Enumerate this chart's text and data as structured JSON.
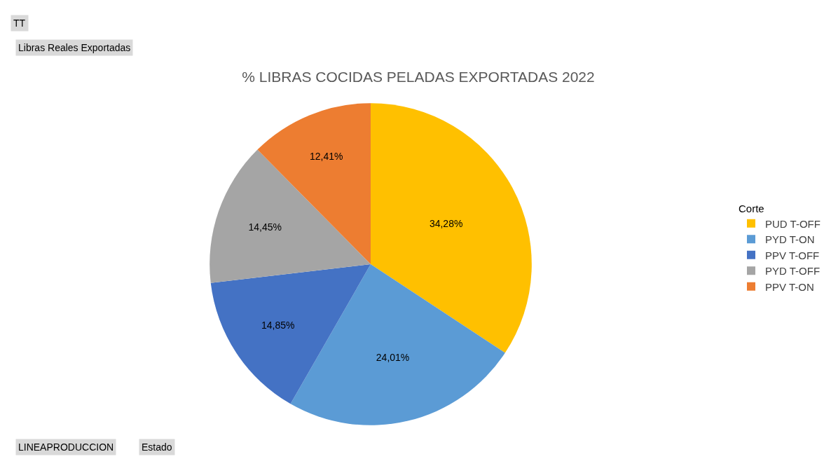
{
  "chart_data": {
    "type": "pie",
    "title": "% LIBRAS COCIDAS PELADAS EXPORTADAS 2022",
    "categories": [
      "PUD T-OFF",
      "PYD T-ON",
      "PPV T-OFF",
      "PYD T-OFF",
      "PPV T-ON"
    ],
    "values": [
      34.28,
      24.01,
      14.85,
      14.45,
      12.41
    ],
    "colors": [
      "#ffc000",
      "#5b9bd5",
      "#4472c4",
      "#a5a5a5",
      "#ed7d31"
    ],
    "value_labels": [
      "34,28%",
      "24,01%",
      "14,85%",
      "14,45%",
      "12,41%"
    ],
    "legend_title": "Corte",
    "legend": "right",
    "annotations": [
      "TT",
      "Libras Reales Exportadas",
      "LINEAPRODUCCION",
      "Estado"
    ]
  }
}
